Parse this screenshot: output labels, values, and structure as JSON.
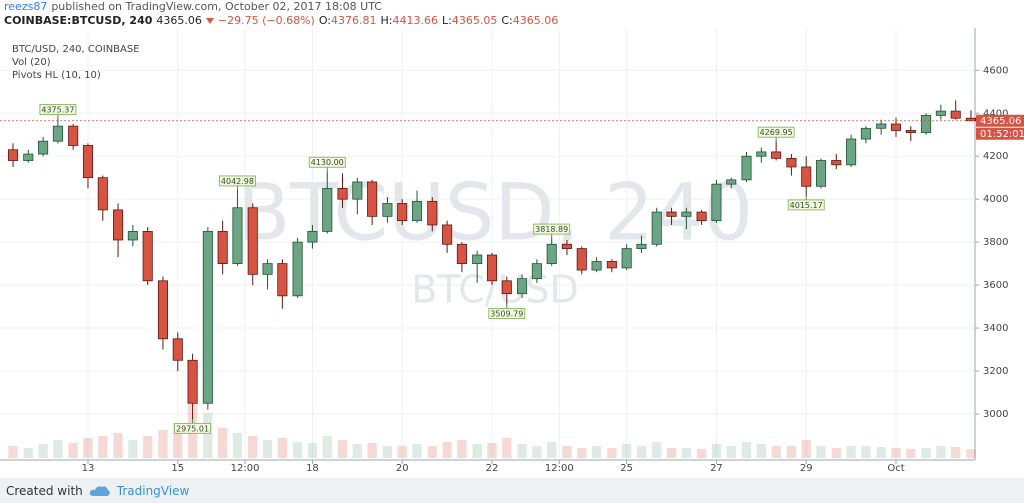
{
  "header": {
    "user": "reezs87",
    "published": "published on TradingView.com, October 02, 2017 18:08 UTC",
    "symbol": "COINBASE:BTCUSD, 240",
    "change": "−29.75 (−0.68%)",
    "o": "O:",
    "h": "H:",
    "l": "L:",
    "c": "C:"
  },
  "legend": [
    "BTC/USD, 240, COINBASE",
    "Vol (20)",
    "Pivots HL (10, 10)"
  ],
  "watermark": [
    "BTCUSD, 240",
    "BTC/USD"
  ],
  "countdown": "01:52:01",
  "footer": {
    "created": "Created with",
    "brand": "TradingView"
  },
  "chart_data": {
    "type": "candlestick",
    "x": [
      11.33,
      11.67,
      12,
      12.33,
      12.67,
      13,
      13.33,
      13.67,
      14,
      14.33,
      14.67,
      15,
      15.33,
      15.67,
      16,
      16.33,
      16.67,
      17,
      17.33,
      17.67,
      18,
      18.33,
      18.67,
      19,
      19.33,
      19.67,
      20,
      20.33,
      20.67,
      21,
      21.33,
      21.67,
      22,
      22.33,
      22.67,
      23,
      23.33,
      23.67,
      24,
      24.33,
      24.67,
      25,
      25.33,
      25.67,
      26,
      26.33,
      26.67,
      27,
      27.33,
      27.67,
      28,
      28.33,
      28.67,
      29,
      29.33,
      29.67,
      30,
      30.33,
      30.67,
      31,
      31.33,
      31.67,
      32,
      32.33,
      32.67
    ],
    "open": [
      4230,
      4180,
      4210,
      4270,
      4340,
      4250,
      4100,
      3950,
      3810,
      3850,
      3620,
      3350,
      3250,
      3050,
      3850,
      3700,
      3960,
      3650,
      3700,
      3550,
      3800,
      3850,
      4050,
      4000,
      4080,
      3920,
      3980,
      3900,
      3990,
      3880,
      3790,
      3700,
      3740,
      3620,
      3560,
      3630,
      3700,
      3790,
      3770,
      3670,
      3710,
      3680,
      3770,
      3790,
      3940,
      3920,
      3940,
      3900,
      4070,
      4090,
      4200,
      4220,
      4190,
      4150,
      4060,
      4180,
      4160,
      4280,
      4330,
      4350,
      4320,
      4310,
      4390,
      4410,
      4376.81
    ],
    "high": [
      4260,
      4230,
      4290,
      4375.37,
      4350,
      4260,
      4110,
      3980,
      3880,
      3870,
      3640,
      3380,
      3280,
      3870,
      3900,
      4042.98,
      3980,
      3720,
      3720,
      3820,
      3880,
      4130,
      4120,
      4100,
      4090,
      4010,
      4000,
      4040,
      4010,
      3900,
      3800,
      3760,
      3750,
      3640,
      3650,
      3720,
      3818.89,
      3810,
      3780,
      3730,
      3720,
      3790,
      3830,
      3960,
      3960,
      3960,
      3950,
      4090,
      4100,
      4220,
      4240,
      4269.95,
      4210,
      4200,
      4190,
      4210,
      4300,
      4340,
      4370,
      4380,
      4340,
      4400,
      4440,
      4460,
      4413.66
    ],
    "low": [
      4150,
      4170,
      4200,
      4260,
      4230,
      4050,
      3900,
      3730,
      3780,
      3600,
      3300,
      3200,
      2975.01,
      3020,
      3650,
      3690,
      3600,
      3580,
      3490,
      3540,
      3770,
      3840,
      3960,
      3930,
      3880,
      3890,
      3880,
      3890,
      3850,
      3750,
      3660,
      3610,
      3600,
      3509.79,
      3540,
      3610,
      3690,
      3740,
      3650,
      3660,
      3660,
      3670,
      3750,
      3780,
      3880,
      3860,
      3880,
      3890,
      4050,
      4080,
      4170,
      4180,
      4110,
      4015.17,
      4050,
      4140,
      4150,
      4260,
      4300,
      4290,
      4270,
      4300,
      4370,
      4370,
      4365.05
    ],
    "close": [
      4180,
      4210,
      4270,
      4340,
      4250,
      4100,
      3950,
      3810,
      3850,
      3620,
      3350,
      3250,
      3050,
      3850,
      3700,
      3960,
      3650,
      3700,
      3550,
      3800,
      3850,
      4050,
      4000,
      4080,
      3920,
      3980,
      3900,
      3990,
      3880,
      3790,
      3700,
      3740,
      3620,
      3560,
      3630,
      3700,
      3790,
      3770,
      3670,
      3710,
      3680,
      3770,
      3790,
      3940,
      3920,
      3940,
      3900,
      4070,
      4090,
      4200,
      4220,
      4190,
      4150,
      4060,
      4180,
      4160,
      4280,
      4330,
      4350,
      4320,
      4310,
      4390,
      4410,
      4376.81,
      4365.06
    ],
    "volume": [
      12,
      10,
      14,
      18,
      15,
      20,
      22,
      25,
      18,
      22,
      28,
      35,
      60,
      45,
      30,
      25,
      22,
      18,
      20,
      16,
      15,
      22,
      18,
      14,
      15,
      12,
      12,
      14,
      12,
      16,
      18,
      14,
      15,
      20,
      14,
      12,
      16,
      12,
      10,
      12,
      10,
      14,
      12,
      16,
      10,
      10,
      9,
      14,
      12,
      16,
      14,
      12,
      12,
      18,
      12,
      10,
      12,
      12,
      11,
      10,
      9,
      10,
      12,
      11,
      9
    ],
    "pivots": {
      "x": [
        12.33,
        15.33,
        16.33,
        18.33,
        22.33,
        23.33,
        28.33,
        29
      ],
      "values": [
        4375.37,
        2975.01,
        4042.98,
        {
          "value": 4130,
          "label": "4130.00"
        },
        3509.79,
        3818.89,
        4269.95,
        4015.17
      ]
    },
    "up_color": "#6ba583",
    "up_border": "#225437",
    "down_color": "#d75442",
    "down_border": "#5b1a13",
    "xlim": [
      11.04,
      32.76
    ],
    "xticks": [
      13,
      15,
      {
        "value": 16.5,
        "label": "12:00"
      },
      18,
      20,
      22,
      {
        "value": 23.5,
        "label": "12:00"
      },
      25,
      27,
      29,
      {
        "value": 31,
        "label": "Oct"
      }
    ],
    "ylim": [
      2795,
      4755
    ],
    "yticks": [
      3000,
      3200,
      3400,
      3600,
      3800,
      4000,
      4200,
      4400,
      4600
    ],
    "grid": true
  }
}
